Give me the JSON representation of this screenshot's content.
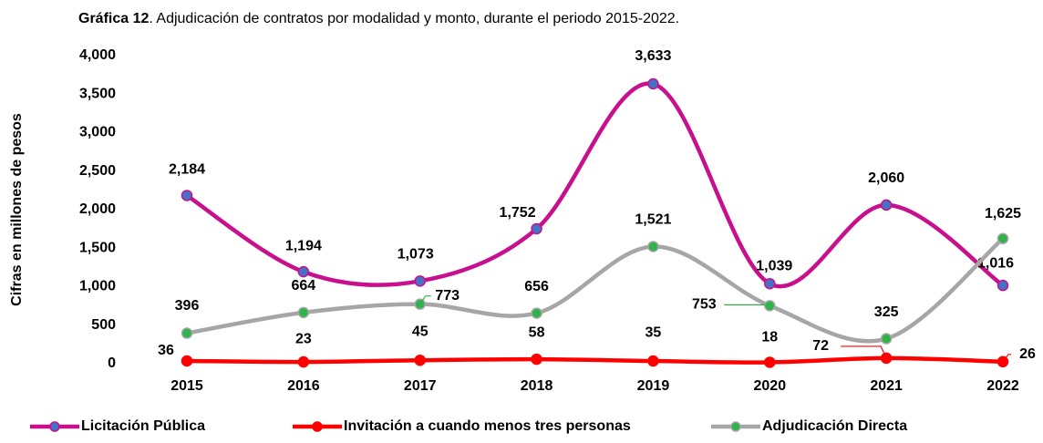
{
  "chart_data": {
    "type": "line",
    "title_bold": "Gráfica 12",
    "title": ". Adjudicación de contratos por modalidad y monto, durante el periodo 2015-2022.",
    "y_label": "Cifras en millones de pesos",
    "categories": [
      "2015",
      "2016",
      "2017",
      "2018",
      "2019",
      "2020",
      "2021",
      "2022"
    ],
    "ylim": [
      0,
      4000
    ],
    "yticks": [
      0,
      500,
      {
        "value": 1000,
        "label": "1,000"
      },
      {
        "value": 1500,
        "label": "1,500"
      },
      {
        "value": 2000,
        "label": "2,000"
      },
      {
        "value": 2500,
        "label": "2,500"
      },
      {
        "value": 3000,
        "label": "3,000"
      },
      {
        "value": 3500,
        "label": "3,500"
      },
      {
        "value": 4000,
        "label": "4,000"
      }
    ],
    "grid": false,
    "legend": "bottom",
    "smooth": true,
    "series": [
      {
        "name": "Licitación Pública",
        "color": "#c8108f",
        "marker_color": "#4472c4",
        "values": [
          2184,
          1194,
          1073,
          1752,
          3633,
          1039,
          2060,
          1016
        ],
        "value_labels": [
          "2,184",
          "1,194",
          "1,073",
          "1,752",
          "3,633",
          "1,039",
          "2,060",
          "1,016"
        ]
      },
      {
        "name": "Invitación a cuando menos tres personas",
        "color": "#ff0000",
        "marker_color": "#ff0000",
        "values": [
          36,
          23,
          45,
          58,
          35,
          18,
          72,
          26
        ],
        "value_labels": [
          "36",
          "23",
          "45",
          "58",
          "35",
          "18",
          "72",
          "26"
        ]
      },
      {
        "name": "Adjudicación Directa",
        "color": "#a6a6a6",
        "marker_color": "#2fb44a",
        "values": [
          396,
          664,
          773,
          656,
          1521,
          753,
          325,
          1625
        ],
        "value_labels": [
          "396",
          "664",
          "773",
          "656",
          "1,521",
          "753",
          "325",
          "1,625"
        ]
      }
    ]
  }
}
